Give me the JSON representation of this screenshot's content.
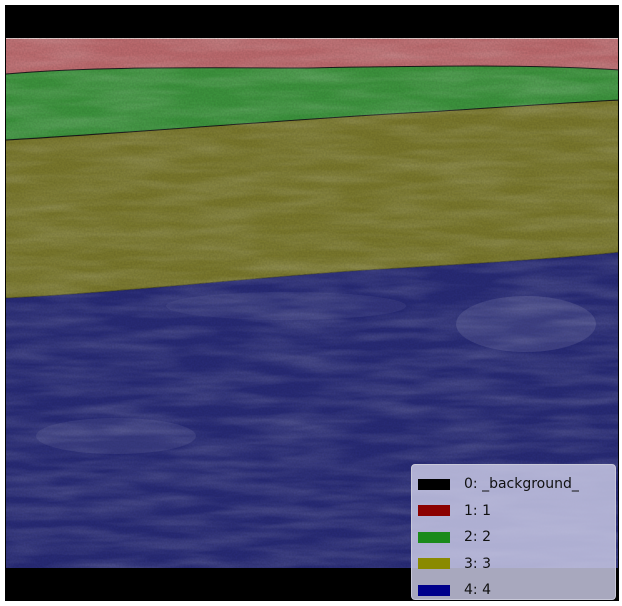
{
  "image": {
    "content": "ultrasound segmentation overlay",
    "band_colors": {
      "background": "#000000",
      "layer_1": "#c46e72",
      "layer_2": "#3f9a40",
      "layer_3": "#7f7d2e",
      "layer_4": "#2a2d7c"
    }
  },
  "legend": {
    "items": [
      {
        "label": "0: _background_",
        "color": "#000000"
      },
      {
        "label": "1: 1",
        "color": "#8b0000"
      },
      {
        "label": "2: 2",
        "color": "#1a8a1a"
      },
      {
        "label": "3: 3",
        "color": "#8a8a00"
      },
      {
        "label": "4: 4",
        "color": "#00008b"
      }
    ]
  }
}
